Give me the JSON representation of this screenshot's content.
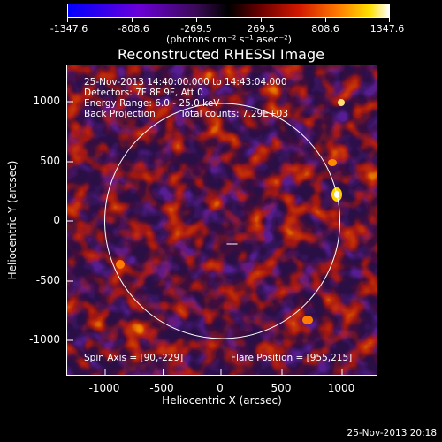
{
  "colorbar": {
    "tick_labels": [
      "-1347.6",
      "-808.6",
      "-269.5",
      "269.5",
      "808.6",
      "1347.6"
    ],
    "units_text": "(photons cm⁻² s⁻¹ asec⁻²)"
  },
  "title": "Reconstructed RHESSI Image",
  "info": {
    "time_range": "25-Nov-2013 14:40:00.000 to 14:43:04.000",
    "detectors": "Detectors: 7F 8F 9F, Att 0",
    "energy": "Energy Range: 6.0 - 25.0 keV",
    "method": "Back Projection",
    "counts": "Total counts: 7.29E+03",
    "spin_axis": "Spin Axis = [90,-229]",
    "flare_position": "Flare Position = [955,215]"
  },
  "axes": {
    "y_title": "Heliocentric Y (arcsec)",
    "x_title": "Heliocentric X (arcsec)",
    "y_tick_labels": [
      "1000",
      "500",
      "0",
      "-500",
      "-1000"
    ],
    "x_tick_labels": [
      "-1000",
      "-500",
      "0",
      "500",
      "1000"
    ]
  },
  "footer": "25-Nov-2013 20:18",
  "colors": {
    "background": "#000000",
    "foreground": "#ffffff"
  }
}
